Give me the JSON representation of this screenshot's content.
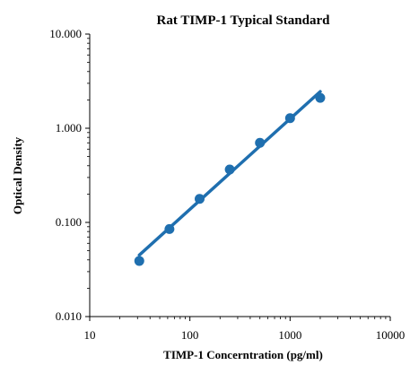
{
  "chart_data": {
    "type": "scatter",
    "title": "Rat TIMP-1 Typical Standard",
    "xlabel": "TIMP-1 Concerntration (pg/ml)",
    "ylabel": "Optical Density",
    "x_scale": "log",
    "y_scale": "log",
    "xlim": [
      10,
      10000
    ],
    "ylim": [
      0.01,
      10
    ],
    "x_ticks": [
      "10",
      "100",
      "1000",
      "10000"
    ],
    "y_ticks": [
      "10.000",
      "1.000",
      "0.100",
      "0.010"
    ],
    "grid": false,
    "series": [
      {
        "kind": "points",
        "x": [
          31.25,
          62.5,
          125,
          250,
          500,
          1000,
          2000
        ],
        "y": [
          0.039,
          0.085,
          0.178,
          0.365,
          0.7,
          1.28,
          2.1
        ]
      },
      {
        "kind": "fit-line",
        "x": [
          31.25,
          2000
        ],
        "y": [
          0.045,
          2.45
        ]
      }
    ],
    "colors": {
      "series": "#1f6faf",
      "axis": "#000000"
    }
  }
}
